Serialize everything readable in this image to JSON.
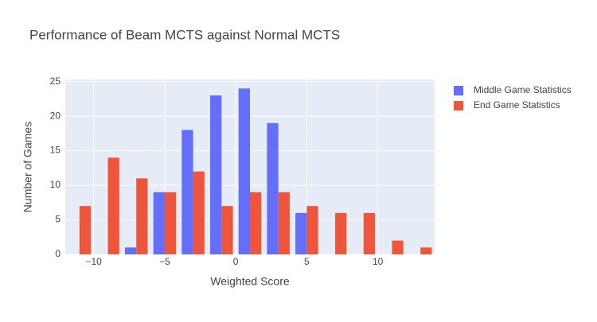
{
  "chart_data": {
    "type": "histogram",
    "title": "Performance of Beam MCTS against Normal MCTS",
    "x_label": "Weighted Score",
    "y_label": "Number of Games",
    "bins": [
      -12,
      -10,
      -8,
      -6,
      -4,
      -2,
      0,
      2,
      4,
      6,
      8,
      10,
      12,
      14
    ],
    "series": [
      {
        "name": "Middle Game Statistics",
        "color": "#636efa",
        "values": [
          0,
          0,
          1,
          9,
          18,
          23,
          24,
          19,
          6,
          0,
          0,
          0,
          0
        ]
      },
      {
        "name": "End Game Statistics",
        "color": "#EF553B",
        "values": [
          7,
          14,
          11,
          9,
          12,
          7,
          9,
          9,
          7,
          6,
          6,
          2,
          1
        ]
      }
    ],
    "xlim": [
      -12,
      14
    ],
    "xticks": [
      {
        "value": -10,
        "label": "−10"
      },
      {
        "value": -5,
        "label": "−5"
      },
      0,
      5,
      10
    ],
    "ylim": [
      0,
      25.3
    ],
    "yticks": [
      0,
      5,
      10,
      15,
      20,
      25
    ],
    "grid": true
  }
}
